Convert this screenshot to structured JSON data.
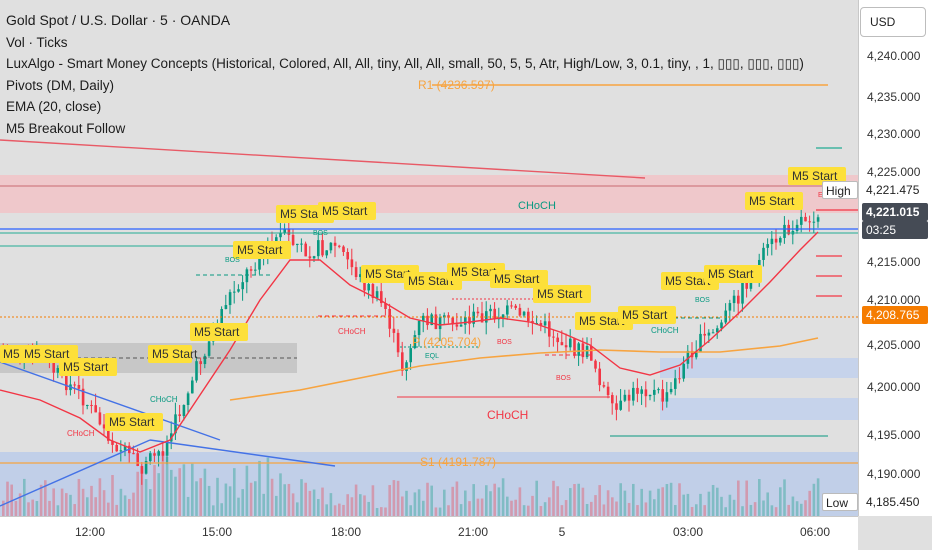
{
  "legend": {
    "title": "Gold Spot / U.S. Dollar · 5 · OANDA",
    "indicators": [
      "Vol · Ticks",
      "LuxAlgo - Smart Money Concepts (Historical, Colored, All, All, tiny, All, All, small, 50, 5, 5, Atr, High/Low, 3, 0.1, tiny, , 1, ▯▯▯, ▯▯▯, ▯▯▯)",
      "Pivots (DM, Daily)",
      "EMA (20, close)",
      "M5 Breakout Follow"
    ]
  },
  "price_axis": {
    "currency_button": "USD",
    "ticks": [
      "4,240.000",
      "4,235.000",
      "4,230.000",
      "4,225.000",
      "4,215.000",
      "4,210.000",
      "4,205.000",
      "4,200.000",
      "4,195.000",
      "4,190.000"
    ],
    "high_label": "High",
    "high_value": "4,221.475",
    "low_label": "Low",
    "low_value": "4,185.450",
    "last_price": "4,221.015",
    "countdown": "03:25",
    "alert_price": "4,208.765"
  },
  "time_axis": {
    "ticks": [
      "12:00",
      "15:00",
      "18:00",
      "21:00",
      "5",
      "03:00",
      "06:00"
    ]
  },
  "chart_labels": {
    "m5_label": "M5 Start",
    "choch": "CHoCH",
    "bos": "BOS",
    "eqh": "EQH",
    "eql": "EQL",
    "pivot_r1": "R1 (4236.597)",
    "pivot_p": "P (4205.704)",
    "pivot_s1": "S1 (4191.787)"
  },
  "colors": {
    "background": "#e0e0e0",
    "bull": "#089981",
    "bear": "#f23645",
    "ema": "#f23645",
    "pivot": "#f7a440",
    "m5_label_bg": "#fde03a",
    "premium_zone": "#f2b8bd",
    "discount_zone": "#a9c0ea"
  }
}
